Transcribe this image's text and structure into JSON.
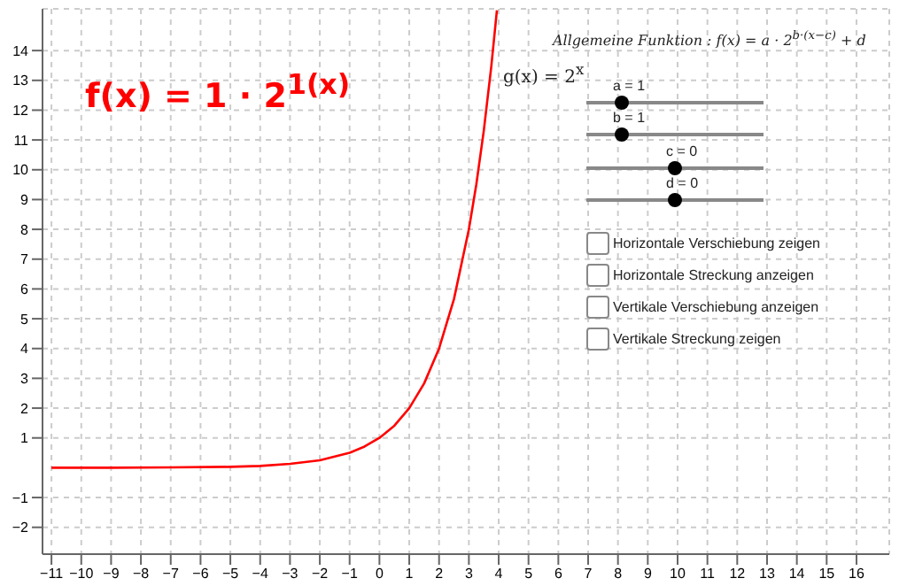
{
  "chart_data": {
    "type": "line",
    "title": "f(x) = 1 · 2$^{1(x)}$",
    "annotations": [
      "g(x) = 2$^{x}$",
      "Allgemeine Funktion : f(x) = a · 2$^{b·(x−c)}$ + d",
      "a = 1",
      "b = 1",
      "c = 0",
      "d = 0",
      "Horizontale Verschiebung zeigen",
      "Horizontale Streckung anzeigen",
      "Vertikale Verschiebung anzeigen",
      "Vertikale Streckung zeigen"
    ],
    "x": [
      -11,
      -9,
      -7,
      -5,
      -4,
      -3,
      -2,
      -1,
      -0.5,
      0,
      0.5,
      1,
      1.5,
      2,
      2.5,
      3,
      3.25,
      3.5,
      3.75,
      3.94
    ],
    "series": [
      {
        "color": "#ff0000",
        "values": [
          0,
          0,
          0.01,
          0.03,
          0.06,
          0.13,
          0.25,
          0.5,
          0.71,
          1,
          1.41,
          2,
          2.83,
          4,
          5.66,
          8,
          9.51,
          11.31,
          13.45,
          15.35
        ]
      }
    ],
    "xlim": [
      -11.3,
      17.1
    ],
    "ylim": [
      -2.9,
      15.4
    ],
    "xticks": [
      -11,
      -10,
      -9,
      -8,
      -7,
      -6,
      -5,
      -4,
      -3,
      -2,
      -1,
      0,
      1,
      2,
      3,
      4,
      5,
      6,
      7,
      8,
      9,
      10,
      11,
      12,
      13,
      14,
      15,
      16
    ],
    "yticks": [
      -2,
      -1,
      1,
      2,
      3,
      4,
      5,
      6,
      7,
      8,
      9,
      10,
      11,
      12,
      13,
      14
    ],
    "grid": true,
    "marker": "none",
    "line_style": "solid"
  }
}
